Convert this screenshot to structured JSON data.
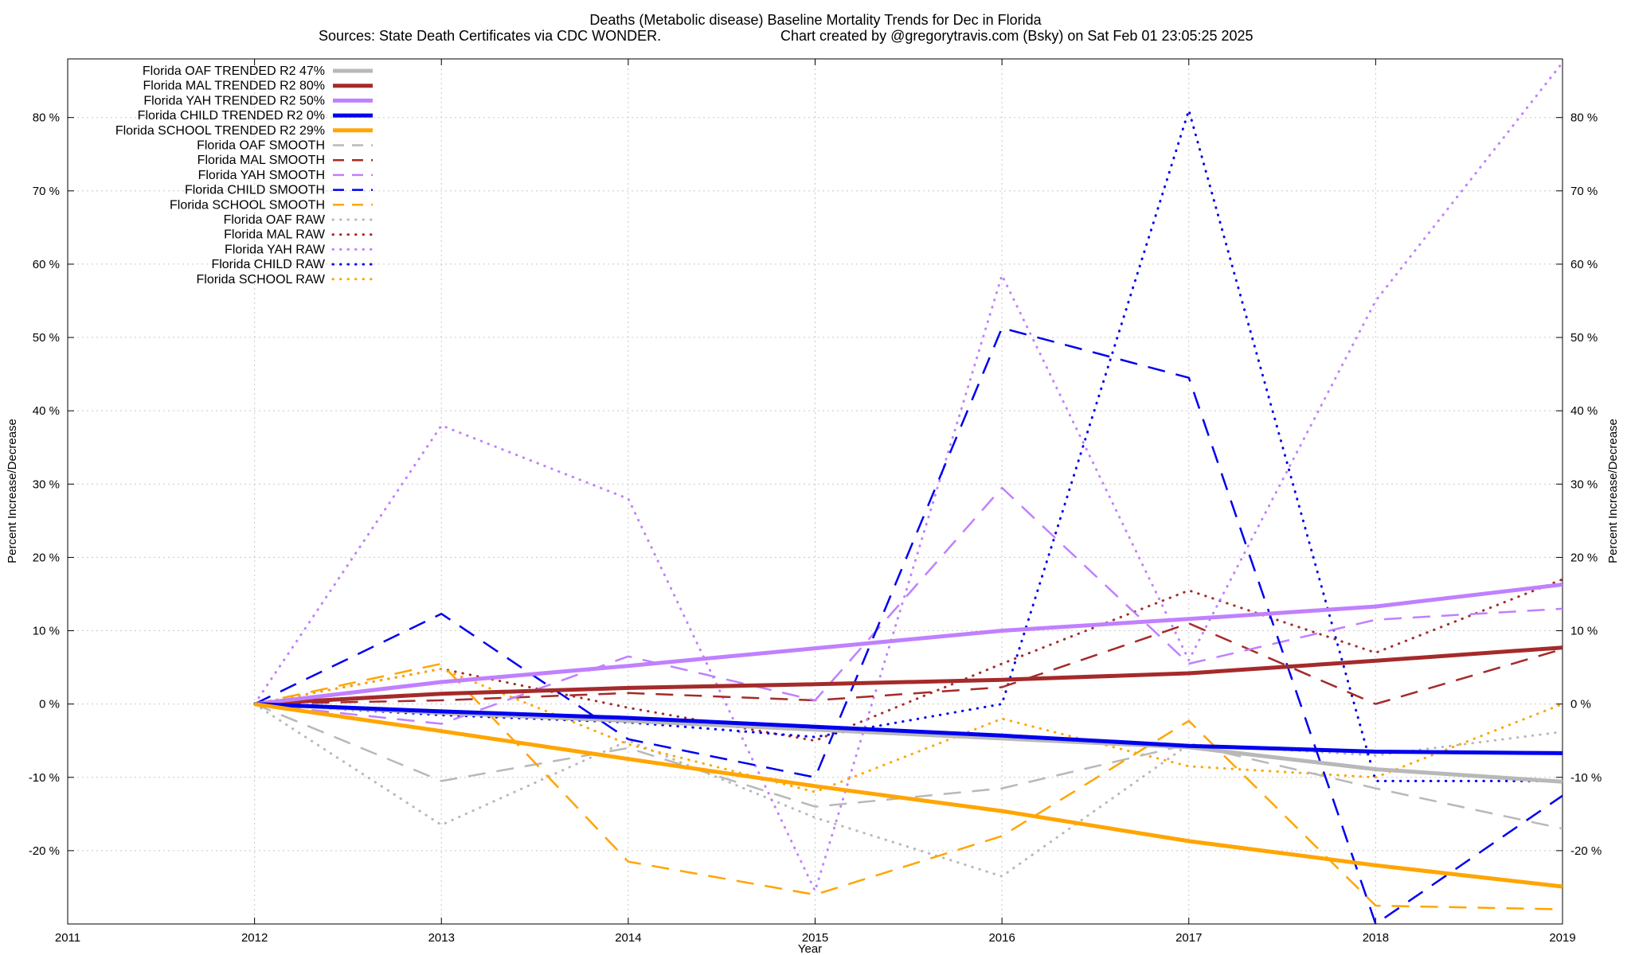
{
  "chart_data": {
    "type": "line",
    "title": "Deaths (Metabolic disease)  Baseline Mortality Trends for Dec in Florida",
    "subtitle_left": "Sources: State Death Certificates via CDC WONDER.",
    "subtitle_right": "Chart created by @gregorytravis.com (Bsky) on Sat Feb 01 23:05:25 2025",
    "xlabel": "Year",
    "ylabel_left": "Percent Increase/Decrease",
    "ylabel_right": "Percent Increase/Decrease",
    "xlim": [
      2011,
      2019
    ],
    "ylim": [
      -30,
      88
    ],
    "x_ticks": [
      "2011",
      "2012",
      "2013",
      "2014",
      "2015",
      "2016",
      "2017",
      "2018",
      "2019"
    ],
    "y_ticks": [
      {
        "v": 80,
        "label": "80 %"
      },
      {
        "v": 70,
        "label": "70 %"
      },
      {
        "v": 60,
        "label": "60 %"
      },
      {
        "v": 50,
        "label": "50 %"
      },
      {
        "v": 40,
        "label": "40 %"
      },
      {
        "v": 30,
        "label": "30 %"
      },
      {
        "v": 20,
        "label": "20 %"
      },
      {
        "v": 10,
        "label": "10 %"
      },
      {
        "v": 0,
        "label": "0 %"
      },
      {
        "v": -10,
        "label": "-10 %"
      },
      {
        "v": -20,
        "label": "-20 %"
      }
    ],
    "grid": true,
    "legend_position": "top-left",
    "x": [
      2012,
      2013,
      2014,
      2015,
      2016,
      2017,
      2018,
      2019
    ],
    "series": [
      {
        "name": "Florida OAF TRENDED R2  47%",
        "style": "trend",
        "color": "#b8b8b8",
        "values": [
          0,
          -1.2,
          -2.3,
          -3.5,
          -4.7,
          -5.9,
          -8.9,
          -10.6
        ]
      },
      {
        "name": "Florida MAL TRENDED R2  80%",
        "style": "trend",
        "color": "#a52a2a",
        "values": [
          0,
          1.4,
          2.2,
          2.7,
          3.3,
          4.2,
          5.9,
          7.7
        ]
      },
      {
        "name": "Florida YAH TRENDED R2  50%",
        "style": "trend",
        "color": "#c080ff",
        "values": [
          0,
          3.0,
          5.2,
          7.6,
          10.0,
          11.6,
          13.3,
          16.3
        ]
      },
      {
        "name": "Florida CHILD TRENDED R2   0%",
        "style": "trend",
        "color": "#0000ee",
        "values": [
          0,
          -1.0,
          -1.9,
          -3.1,
          -4.3,
          -5.7,
          -6.5,
          -6.7
        ]
      },
      {
        "name": "Florida SCHOOL TRENDED R2  29%",
        "style": "trend",
        "color": "#ffa500",
        "values": [
          0,
          -3.7,
          -7.5,
          -11.2,
          -14.6,
          -18.7,
          -22.0,
          -24.9
        ]
      },
      {
        "name": "Florida OAF SMOOTH",
        "style": "smooth",
        "color": "#b8b8b8",
        "values": [
          0,
          -10.5,
          -6.0,
          -14.0,
          -11.5,
          -5.5,
          -11.5,
          -17.0
        ]
      },
      {
        "name": "Florida MAL SMOOTH",
        "style": "smooth",
        "color": "#a52a2a",
        "values": [
          0,
          0.5,
          1.5,
          0.5,
          2.3,
          11.0,
          0,
          7.5
        ]
      },
      {
        "name": "Florida YAH SMOOTH",
        "style": "smooth",
        "color": "#c080ff",
        "values": [
          0,
          -2.7,
          6.5,
          0.5,
          29.5,
          5.5,
          11.5,
          13.0
        ]
      },
      {
        "name": "Florida CHILD SMOOTH",
        "style": "smooth",
        "color": "#0000ee",
        "values": [
          0,
          12.3,
          -4.8,
          -10.0,
          51.3,
          44.5,
          -30.0,
          -12.5
        ]
      },
      {
        "name": "Florida SCHOOL SMOOTH",
        "style": "smooth",
        "color": "#ffa500",
        "values": [
          0,
          5.5,
          -21.5,
          -26.0,
          -18.0,
          -2.3,
          -27.5,
          -28.0
        ]
      },
      {
        "name": "Florida OAF RAW",
        "style": "raw",
        "color": "#b8b8b8",
        "values": [
          0,
          -16.5,
          -5.0,
          -15.5,
          -23.5,
          -5.5,
          -7.0,
          -3.8
        ]
      },
      {
        "name": "Florida MAL RAW",
        "style": "raw",
        "color": "#a52a2a",
        "values": [
          0,
          4.8,
          -0.5,
          -5.0,
          5.5,
          15.5,
          7.0,
          17.0
        ]
      },
      {
        "name": "Florida YAH RAW",
        "style": "raw",
        "color": "#c080ff",
        "values": [
          0,
          38.0,
          28.0,
          -25.5,
          58.5,
          6.0,
          55.0,
          87.5
        ]
      },
      {
        "name": "Florida CHILD RAW",
        "style": "raw",
        "color": "#0000ee",
        "values": [
          0,
          -1.5,
          -2.5,
          -4.5,
          0,
          81.0,
          -10.5,
          -10.5
        ]
      },
      {
        "name": "Florida SCHOOL RAW",
        "style": "raw",
        "color": "#ffa500",
        "values": [
          0,
          4.8,
          -5.5,
          -12.0,
          -2.0,
          -8.5,
          -10.0,
          0
        ]
      }
    ]
  }
}
